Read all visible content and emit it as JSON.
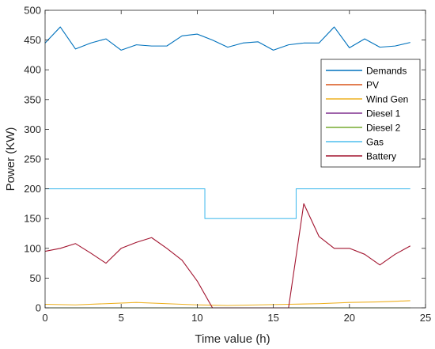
{
  "chart_data": {
    "type": "line",
    "title": "",
    "xlabel": "Time value (h)",
    "ylabel": "Power (KW)",
    "xlim": [
      0,
      25
    ],
    "ylim": [
      0,
      500
    ],
    "xticks": [
      "0",
      "5",
      "10",
      "15",
      "20",
      "25"
    ],
    "yticks": [
      "0",
      "50",
      "100",
      "150",
      "200",
      "250",
      "300",
      "350",
      "400",
      "450",
      "500"
    ],
    "grid": false,
    "legend_position": "top-right",
    "series": [
      {
        "name": "Demands",
        "color": "#0072BD",
        "style": "line",
        "x": [
          0,
          1,
          2,
          3,
          4,
          5,
          6,
          7,
          8,
          9,
          10,
          11,
          12,
          13,
          14,
          15,
          16,
          17,
          18,
          19,
          20,
          21,
          22,
          23,
          24
        ],
        "y": [
          445,
          472,
          435,
          445,
          452,
          433,
          442,
          440,
          440,
          457,
          460,
          450,
          438,
          445,
          447,
          433,
          442,
          445,
          445,
          472,
          437,
          452,
          438,
          440,
          446
        ]
      },
      {
        "name": "PV",
        "color": "#D95319",
        "style": "line",
        "x": [
          0,
          1,
          2,
          3,
          4,
          5,
          6,
          7,
          8,
          9,
          10,
          11,
          11.5,
          12,
          13,
          14,
          15,
          16,
          16.3,
          16.6,
          17,
          18,
          19,
          20,
          21,
          22,
          23,
          24
        ],
        "y": [
          0,
          0,
          0,
          0,
          0,
          0,
          0,
          0,
          0,
          0,
          0,
          0,
          0,
          0,
          0,
          0,
          0,
          0,
          0,
          0,
          0,
          0,
          0,
          0,
          0,
          0,
          0,
          0
        ]
      },
      {
        "name": "Wind Gen",
        "color": "#EDB120",
        "style": "line",
        "x": [
          0,
          2,
          4,
          6,
          8,
          10,
          12,
          14,
          16,
          18,
          20,
          22,
          24
        ],
        "y": [
          6,
          5,
          7,
          9,
          7,
          5,
          4,
          5,
          6,
          7,
          9,
          10,
          12
        ]
      },
      {
        "name": "Diesel 1",
        "color": "#7E2F8E",
        "style": "oscillation",
        "x": [
          0,
          1,
          2,
          3,
          4,
          5,
          6,
          7,
          8,
          9,
          10,
          11,
          12,
          13,
          14,
          15,
          16,
          17,
          18,
          19,
          20,
          21,
          22,
          23,
          24
        ],
        "y": [
          0,
          0,
          0,
          0,
          0,
          0,
          0,
          0,
          0,
          0,
          0,
          0,
          0,
          0,
          0,
          0,
          0,
          0,
          0,
          0,
          0,
          0,
          0,
          0,
          0
        ]
      },
      {
        "name": "Diesel 2",
        "color": "#77AC30",
        "style": "line",
        "x": [
          0,
          24
        ],
        "y": [
          0,
          0
        ]
      },
      {
        "name": "Gas",
        "color": "#4DBEEE",
        "style": "line",
        "x": [
          0,
          10.5,
          10.5,
          16.5,
          16.5,
          24
        ],
        "y": [
          200,
          200,
          150,
          150,
          200,
          200
        ]
      },
      {
        "name": "Battery",
        "color": "#A2142F",
        "style": "line",
        "x": [
          0,
          1,
          2,
          3,
          4,
          5,
          6,
          7,
          8,
          9,
          10,
          11,
          12,
          13,
          14,
          15,
          16,
          17,
          18,
          19,
          20,
          21,
          22,
          23,
          24
        ],
        "y": [
          95,
          100,
          108,
          92,
          75,
          100,
          110,
          118,
          100,
          80,
          45,
          0,
          0,
          0,
          0,
          0,
          0,
          175,
          120,
          100,
          100,
          90,
          72,
          90,
          104
        ]
      }
    ]
  }
}
